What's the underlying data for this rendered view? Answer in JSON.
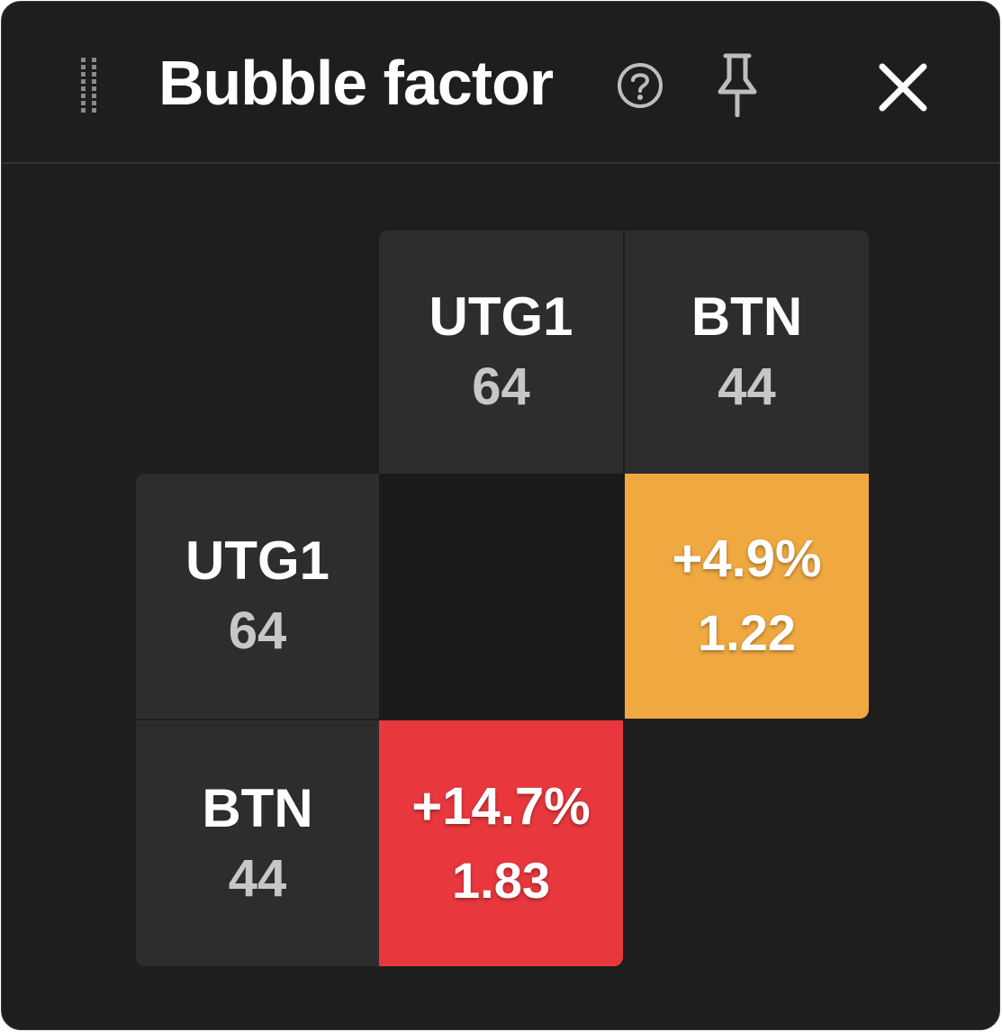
{
  "header": {
    "title": "Bubble factor",
    "icons": [
      "drag-handle-icon",
      "help-icon",
      "pin-icon",
      "close-icon"
    ]
  },
  "columns": [
    {
      "name": "UTG1",
      "stack": "64"
    },
    {
      "name": "BTN",
      "stack": "44"
    }
  ],
  "rows": [
    {
      "name": "UTG1",
      "stack": "64"
    },
    {
      "name": "BTN",
      "stack": "44"
    }
  ],
  "cells": {
    "utg1_vs_btn": {
      "percent": "+4.9%",
      "factor": "1.22",
      "color": "#f0a941"
    },
    "btn_vs_utg1": {
      "percent": "+14.7%",
      "factor": "1.83",
      "color": "#e8383d"
    }
  },
  "colors": {
    "panel_bg": "#1e1e1e",
    "header_cell_bg": "#2d2d2d",
    "empty_cell_bg": "#1a1a1a",
    "orange": "#f0a941",
    "red": "#e8383d"
  }
}
